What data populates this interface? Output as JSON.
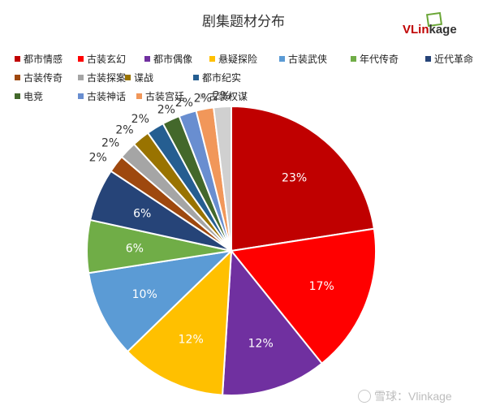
{
  "chart_data": {
    "type": "pie",
    "title": "剧集题材分布",
    "categories": [
      "都市情感",
      "古装玄幻",
      "都市偶像",
      "悬疑探险",
      "古装武侠",
      "年代传奇",
      "近代革命",
      "古装传奇",
      "古装探案",
      "谍战",
      "都市纪实",
      "电竞",
      "古装神话",
      "古装宫廷",
      "古装权谋"
    ],
    "values": [
      23,
      17,
      12,
      12,
      10,
      6,
      6,
      2,
      2,
      2,
      2,
      2,
      2,
      2,
      2
    ],
    "value_labels": [
      "23%",
      "17%",
      "12%",
      "12%",
      "10%",
      "6%",
      "6%",
      "2%",
      "2%",
      "2%",
      "2%",
      "2%",
      "2%",
      "2%",
      "2%"
    ],
    "colors": [
      "#c00000",
      "#ff0000",
      "#7030a0",
      "#ffc000",
      "#5b9bd5",
      "#70ad47",
      "#264478",
      "#9e480e",
      "#a5a5a5",
      "#997300",
      "#255e91",
      "#43682b",
      "#698ed0",
      "#f1975a",
      "#d0d0d0"
    ],
    "legend_position": "top",
    "start_angle_deg": 0,
    "direction": "clockwise"
  },
  "logo": {
    "text_main": "VLin",
    "text_tail": "kage"
  },
  "watermark": {
    "text": "雪球：Vlinkage"
  }
}
